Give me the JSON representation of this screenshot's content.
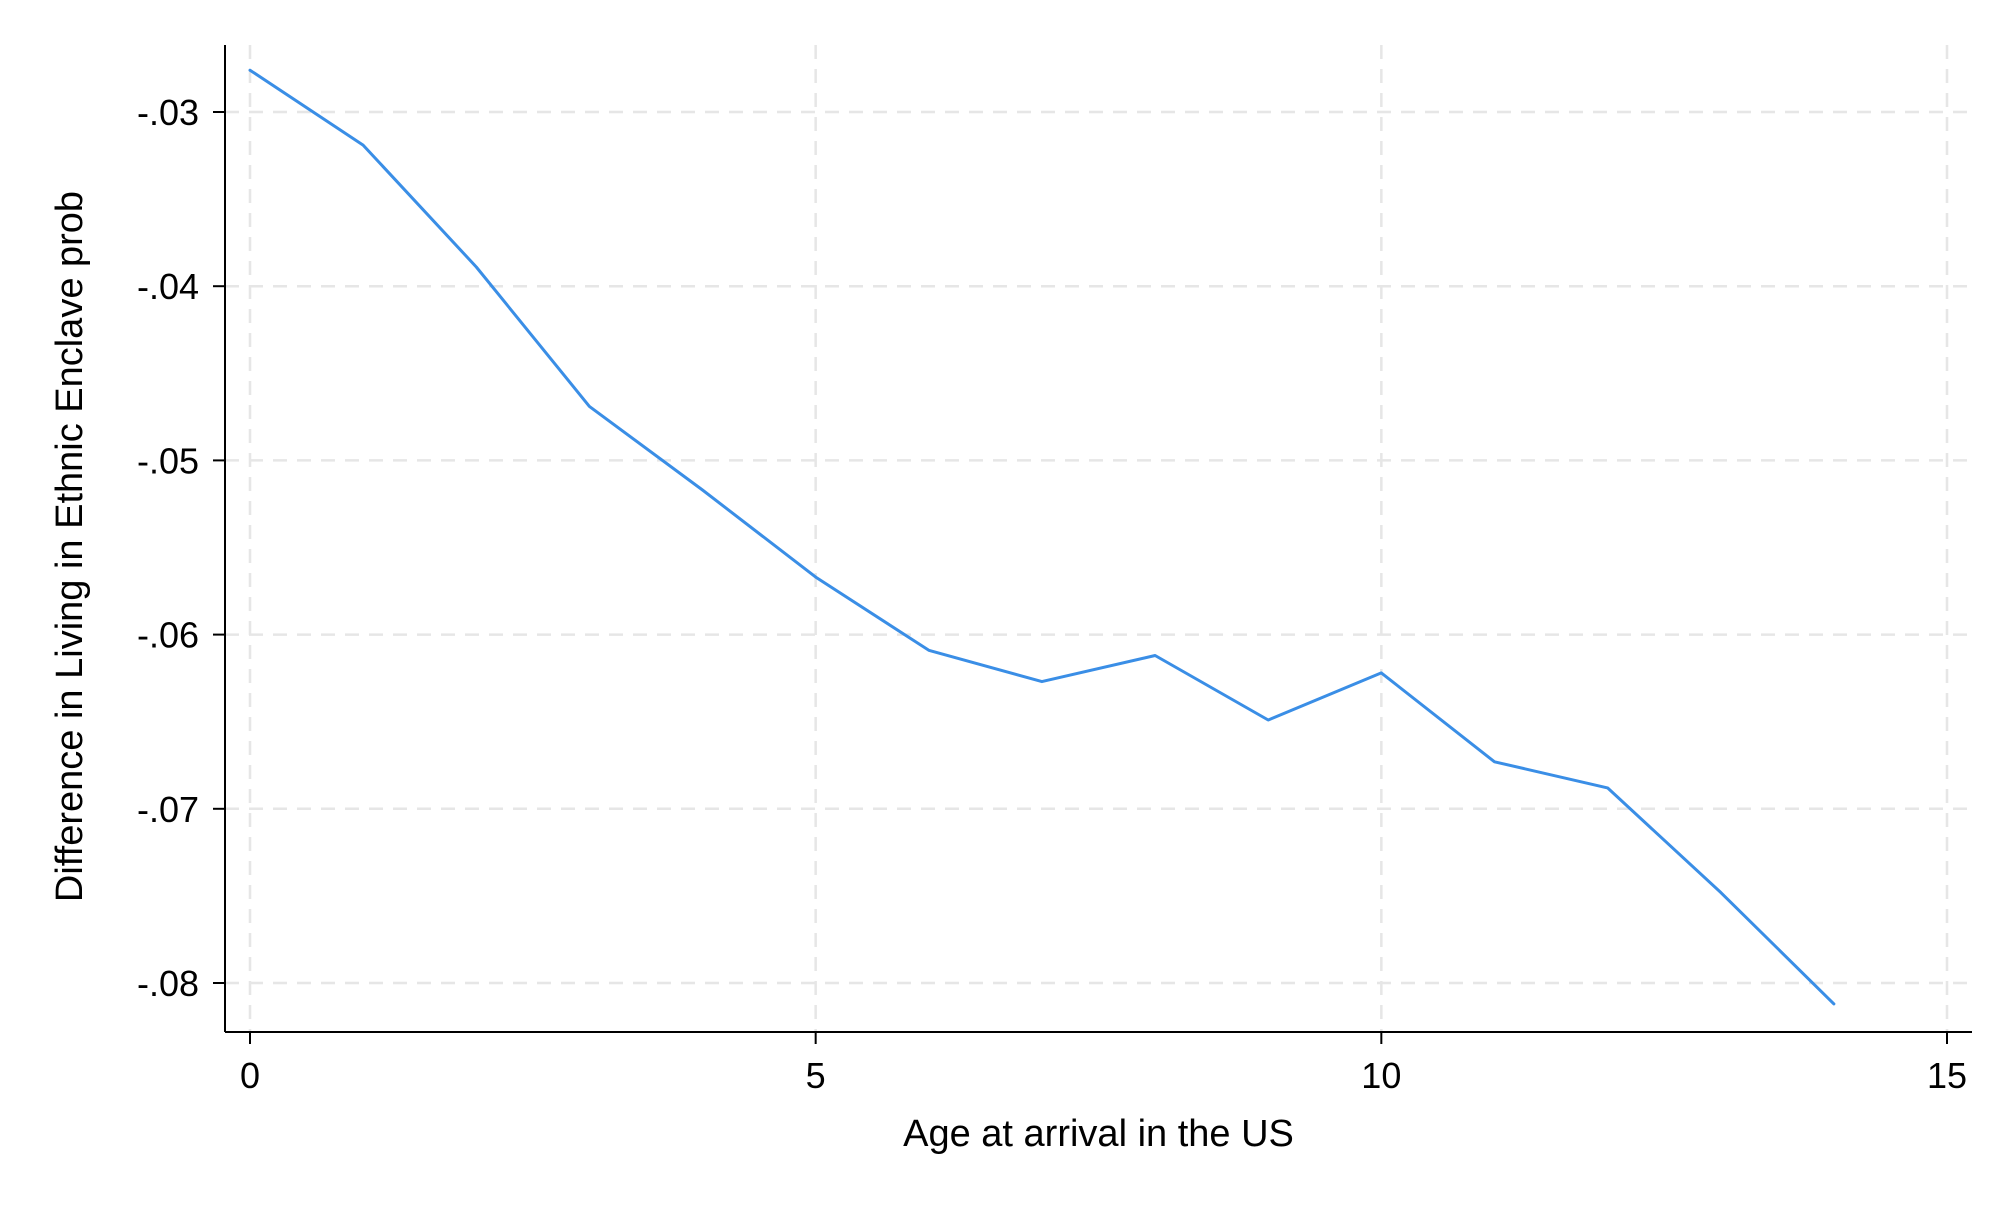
{
  "chart_data": {
    "type": "line",
    "title": "",
    "xlabel": "Age at arrival in the US",
    "ylabel": "Difference in Living in Ethnic Enclave prob",
    "xlim": [
      0,
      15
    ],
    "ylim": [
      -0.08,
      -0.03
    ],
    "x_ticks": [
      0,
      5,
      10,
      15
    ],
    "x_tick_labels": [
      "0",
      "5",
      "10",
      "15"
    ],
    "y_ticks": [
      -0.03,
      -0.04,
      -0.05,
      -0.06,
      -0.07,
      -0.08
    ],
    "y_tick_labels": [
      "-.03",
      "-.04",
      "-.05",
      "-.06",
      "-.07",
      "-.08"
    ],
    "grid": true,
    "legend": "none",
    "line_color": "#3a8ee6",
    "series": [
      {
        "x": [
          0,
          1,
          2,
          3,
          4,
          5,
          6,
          7,
          8,
          9,
          10,
          11,
          12,
          13,
          14
        ],
        "values": [
          -0.0276,
          -0.0319,
          -0.0389,
          -0.0469,
          -0.0517,
          -0.0567,
          -0.0609,
          -0.0627,
          -0.0612,
          -0.0649,
          -0.0622,
          -0.0673,
          -0.0688,
          -0.0748,
          -0.0812
        ]
      }
    ]
  }
}
